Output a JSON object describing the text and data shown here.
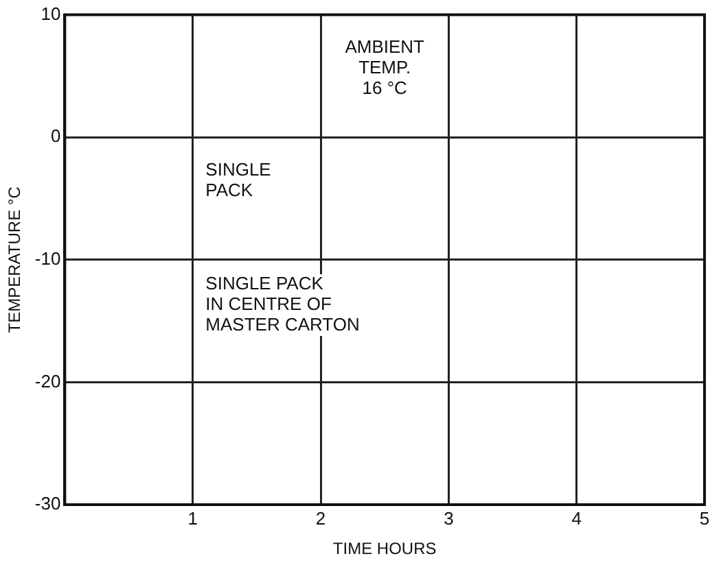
{
  "chart_data": {
    "type": "line",
    "xlabel": "TIME HOURS",
    "ylabel": "TEMPERATURE °C",
    "xlim": [
      0,
      5
    ],
    "xticks": [
      1,
      2,
      3,
      4,
      5
    ],
    "ylim": [
      -30,
      10
    ],
    "yticks": [
      -30,
      -20,
      -10,
      0,
      10
    ],
    "grid": true,
    "legend": false,
    "annotations": [
      "AMBIENT\nTEMP.\n16 °C",
      "SINGLE\nPACK",
      "SINGLE PACK\nIN CENTRE OF\nMASTER CARTON"
    ]
  }
}
